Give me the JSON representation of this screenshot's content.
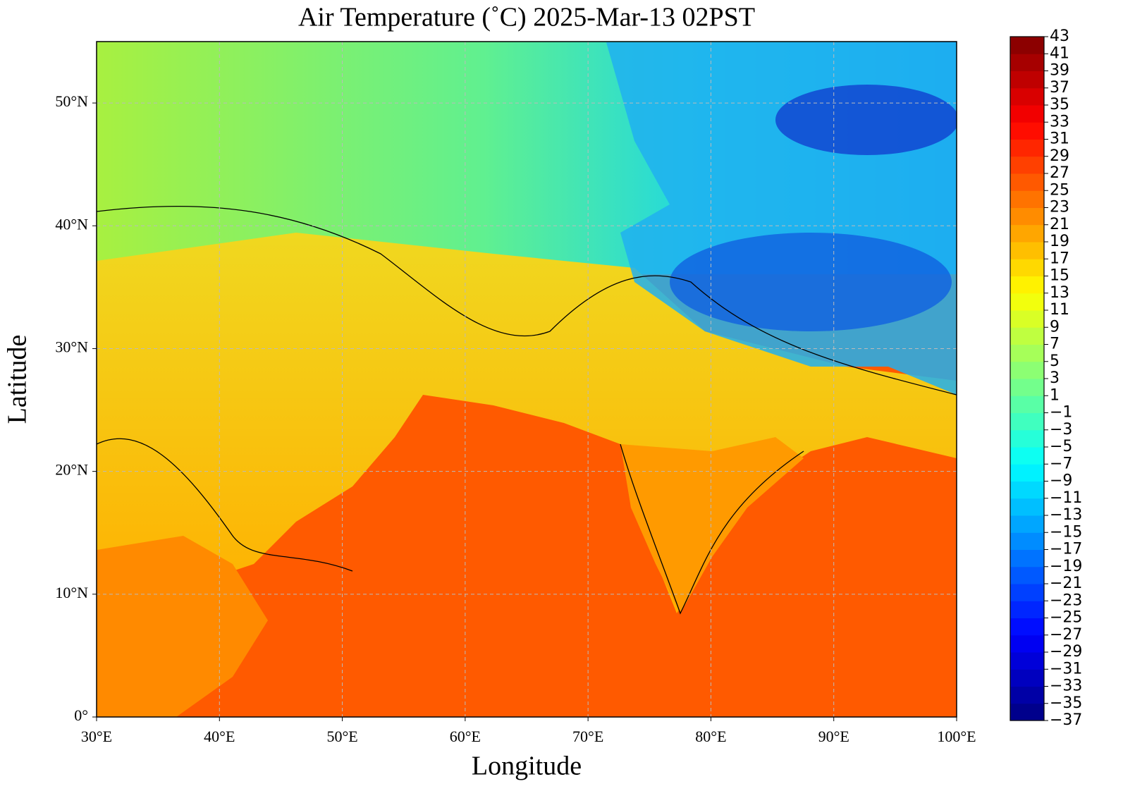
{
  "map": {
    "title": "Air Temperature (˚C)  2025-Mar-13 02PST",
    "xlabel": "Longitude",
    "ylabel": "Latitude",
    "xlim": [
      30,
      100
    ],
    "ylim": [
      0,
      55
    ],
    "xticks": [
      {
        "value": 30,
        "label": "30°E"
      },
      {
        "value": 40,
        "label": "40°E"
      },
      {
        "value": 50,
        "label": "50°E"
      },
      {
        "value": 60,
        "label": "60°E"
      },
      {
        "value": 70,
        "label": "70°E"
      },
      {
        "value": 80,
        "label": "80°E"
      },
      {
        "value": 90,
        "label": "90°E"
      },
      {
        "value": 100,
        "label": "100°E"
      }
    ],
    "yticks": [
      {
        "value": 0,
        "label": "0°"
      },
      {
        "value": 10,
        "label": "10°N"
      },
      {
        "value": 20,
        "label": "20°N"
      },
      {
        "value": 30,
        "label": "30°N"
      },
      {
        "value": 40,
        "label": "40°N"
      },
      {
        "value": 50,
        "label": "50°N"
      }
    ],
    "grid": true,
    "colorbar": {
      "colormap": "jet",
      "lim": [
        -37,
        43
      ],
      "ticks": [
        {
          "value": -37,
          "label": "−37"
        },
        {
          "value": -35,
          "label": "−35"
        },
        {
          "value": -33,
          "label": "−33"
        },
        {
          "value": -31,
          "label": "−31"
        },
        {
          "value": -29,
          "label": "−29"
        },
        {
          "value": -27,
          "label": "−27"
        },
        {
          "value": -25,
          "label": "−25"
        },
        {
          "value": -23,
          "label": "−23"
        },
        {
          "value": -21,
          "label": "−21"
        },
        {
          "value": -19,
          "label": "−19"
        },
        {
          "value": -17,
          "label": "−17"
        },
        {
          "value": -15,
          "label": "−15"
        },
        {
          "value": -13,
          "label": "−13"
        },
        {
          "value": -11,
          "label": "−11"
        },
        {
          "value": -9,
          "label": "−9"
        },
        {
          "value": -7,
          "label": "−7"
        },
        {
          "value": -5,
          "label": "−5"
        },
        {
          "value": -3,
          "label": "−3"
        },
        {
          "value": -1,
          "label": "−1"
        },
        1,
        3,
        5,
        7,
        9,
        11,
        13,
        15,
        17,
        19,
        21,
        23,
        25,
        27,
        29,
        31,
        33,
        35,
        37,
        39,
        41,
        43
      ]
    }
  }
}
